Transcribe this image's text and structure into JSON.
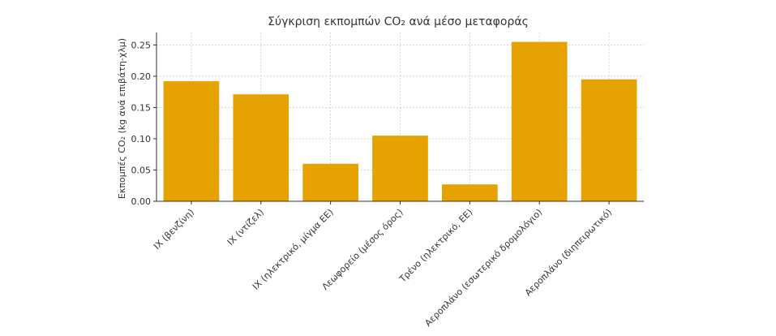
{
  "chart_data": {
    "type": "bar",
    "title": "Σύγκριση εκπομπών CO₂ ανά μέσο μεταφοράς",
    "xlabel": "",
    "ylabel": "Εκπομπές CO₂ (kg ανά επιβάτη-χλμ)",
    "categories": [
      "ΙΧ (βενζίνη)",
      "ΙΧ (ντίζελ)",
      "ΙΧ (ηλεκτρικό, μίγμα ΕΕ)",
      "Λεωφορείο (μέσος όρος)",
      "Τρένο (ηλεκτρικό, ΕΕ)",
      "Αεροπλάνο (εσωτερικό δρομολόγιο)",
      "Αεροπλάνο (διηπειρωτικό)"
    ],
    "values": [
      0.192,
      0.171,
      0.06,
      0.105,
      0.027,
      0.255,
      0.195
    ],
    "ylim": [
      0,
      0.27
    ],
    "yticks": [
      "0.00",
      "0.05",
      "0.10",
      "0.15",
      "0.20",
      "0.25"
    ],
    "grid": true,
    "bar_color": "#e6a200"
  }
}
